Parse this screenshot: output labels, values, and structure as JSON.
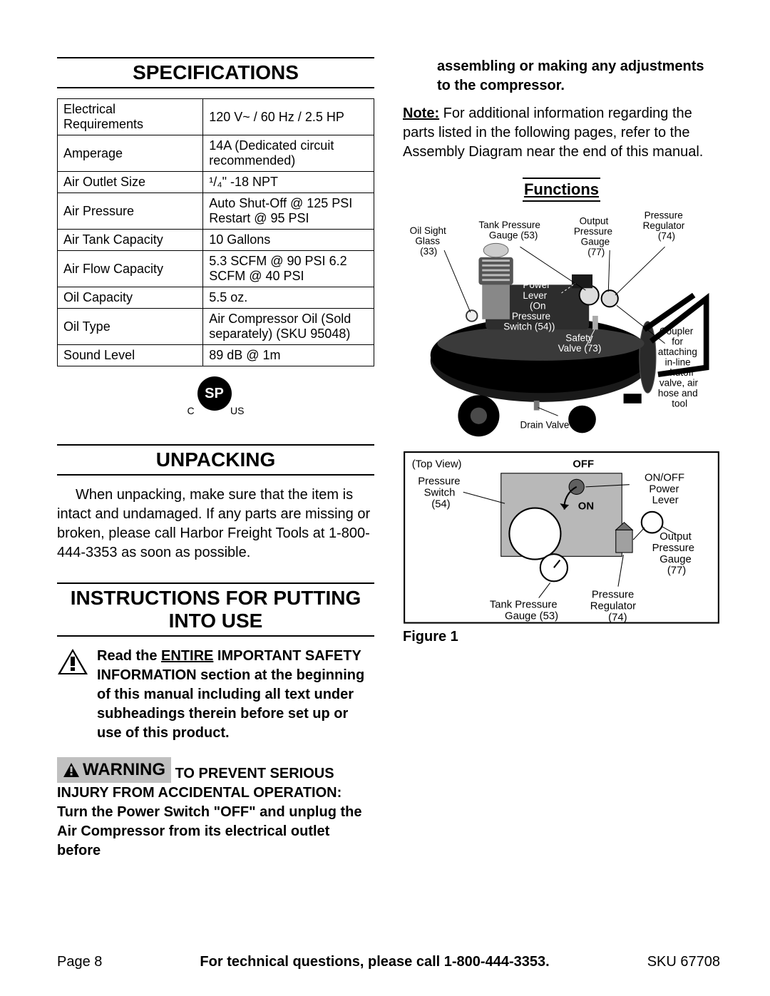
{
  "sections": {
    "specifications": "SPECIFICATIONS",
    "unpacking": "UNPACKING",
    "instructions": "INSTRUCTIONS FOR PUTTING INTO USE",
    "functions": "Functions"
  },
  "spec_table": {
    "rows": [
      [
        "Electrical Requirements",
        "120 V~ / 60 Hz / 2.5 HP"
      ],
      [
        "Amperage",
        "14A (Dedicated circuit recommended)"
      ],
      [
        "Air Outlet Size",
        "¹/₄\" -18 NPT"
      ],
      [
        "Air Pressure",
        "Auto Shut-Off @ 125 PSI Restart @ 95 PSI"
      ],
      [
        "Air Tank Capacity",
        "10 Gallons"
      ],
      [
        "Air Flow Capacity",
        "5.3 SCFM @ 90 PSI 6.2 SCFM @ 40 PSI"
      ],
      [
        "Oil Capacity",
        "5.5 oz."
      ],
      [
        "Oil Type",
        "Air Compressor Oil (Sold separately) (SKU 95048)"
      ],
      [
        "Sound Level",
        "89 dB @ 1m"
      ]
    ]
  },
  "csa": {
    "c": "C",
    "us": "US",
    "sp": "SP"
  },
  "unpacking_text": "When unpacking, make sure that the item is intact and undamaged.  If any parts are missing or broken, please call Harbor Freight Tools at 1-800-444-3353 as soon as possible.",
  "safety": {
    "pre": "Read the ",
    "entire": "ENTIRE",
    "post": " IMPORTANT SAFETY INFORMATION",
    "rest": "section at the beginning of this manual including all text under subheadings therein before set up or use of this product."
  },
  "warning": {
    "label": "WARNING",
    "line1": "TO PREVENT SERIOUS INJURY FROM ACCIDENTAL OPERATION:",
    "line2": "Turn the Power Switch \"OFF\" and unplug the Air Compressor from its electrical outlet before"
  },
  "right_col": {
    "cont": "assembling or making any adjustments to the compressor.",
    "note_label": "Note:",
    "note": " For additional information regarding the parts listed in the following pages, refer to the Assembly Diagram near the end of this manual."
  },
  "diagram": {
    "labels": {
      "oil_sight": "Oil Sight Glass (33)",
      "tank_pressure": "Tank Pressure Gauge (53)",
      "output_pressure": "Output Pressure Gauge (77)",
      "regulator": "Pressure Regulator (74)",
      "onoff": "ON/OFF Power Lever (On Pressure Switch (54))",
      "safety_valve": "Safety Valve (73)",
      "coupler": "Coupler for attaching in-line shutoff valve, air hose and tool",
      "drain_valve": "Drain Valve (66)"
    },
    "topview": {
      "title": "(Top View)",
      "off": "OFF",
      "on": "ON",
      "ps": "Pressure Switch (54)",
      "onoff_lever": "ON/OFF Power Lever",
      "tpg": "Tank Pressure Gauge (53)",
      "opg": "Output Pressure Gauge (77)",
      "reg": "Pressure Regulator (74)"
    },
    "figure_caption": "Figure 1"
  },
  "footer": {
    "page": "Page 8",
    "mid": "For technical questions, please call 1-800-444-3353.",
    "sku": "SKU 67708"
  },
  "colors": {
    "black": "#000000",
    "grey": "#c0c0c0",
    "midgrey": "#a8a8a8",
    "darkgrey": "#606060",
    "lightgrey": "#d0d0d0",
    "white": "#ffffff"
  }
}
